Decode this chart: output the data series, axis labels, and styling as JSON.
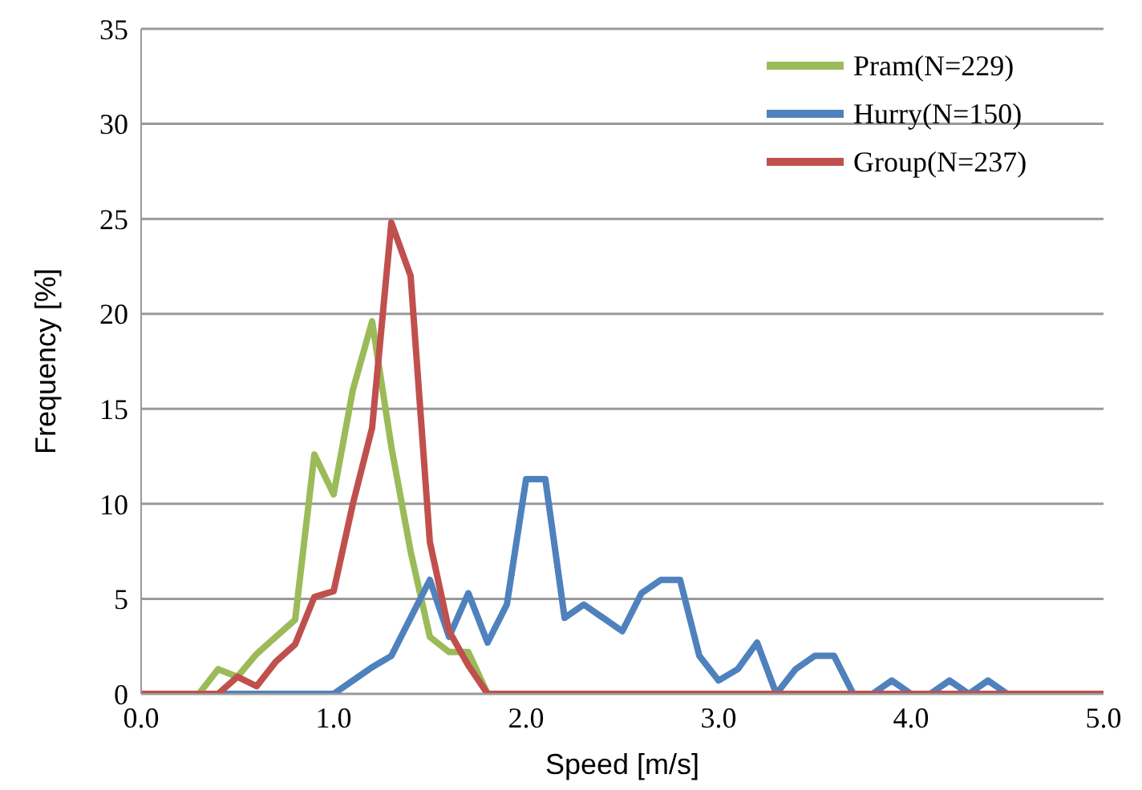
{
  "chart_data": {
    "type": "line",
    "xlabel": "Speed [m/s]",
    "ylabel": "Frequency [%]",
    "x": [
      0,
      0.1,
      0.2,
      0.3,
      0.4,
      0.5,
      0.6,
      0.7,
      0.8,
      0.9,
      1.0,
      1.1,
      1.2,
      1.3,
      1.4,
      1.5,
      1.6,
      1.7,
      1.8,
      1.9,
      2.0,
      2.1,
      2.2,
      2.3,
      2.4,
      2.5,
      2.6,
      2.7,
      2.8,
      2.9,
      3.0,
      3.1,
      3.2,
      3.3,
      3.4,
      3.5,
      3.6,
      3.7,
      3.8,
      3.9,
      4.0,
      4.1,
      4.2,
      4.3,
      4.4,
      4.5,
      4.6,
      4.7,
      4.8,
      4.9,
      5.0
    ],
    "series": [
      {
        "name": "Pram(N=229)",
        "color": "#9bbb59",
        "values": [
          0,
          0,
          0,
          0,
          1.3,
          0.9,
          2.1,
          3,
          3.9,
          12.6,
          10.5,
          16,
          19.6,
          13,
          7.5,
          3,
          2.2,
          2.2,
          0,
          0,
          0,
          0,
          0,
          0,
          0,
          0,
          0,
          0,
          0,
          0,
          0,
          0,
          0,
          0,
          0,
          0,
          0,
          0,
          0,
          0,
          0,
          0,
          0,
          0,
          0,
          0,
          0,
          0,
          0,
          0,
          0
        ]
      },
      {
        "name": "Hurry(N=150)",
        "color": "#4f81bd",
        "values": [
          null,
          null,
          null,
          0,
          0,
          0,
          0,
          0,
          0,
          0,
          0,
          0.7,
          1.4,
          2,
          4,
          6,
          3,
          5.3,
          2.7,
          4.7,
          11.3,
          11.3,
          4,
          4.7,
          4,
          3.3,
          5.3,
          6,
          6,
          2,
          0.7,
          1.3,
          2.7,
          0,
          1.3,
          2,
          2,
          0,
          0,
          0.7,
          0,
          0,
          0.7,
          0,
          0.7,
          0,
          0,
          null,
          null,
          null,
          null
        ]
      },
      {
        "name": "Group(N=237)",
        "color": "#c0504d",
        "values": [
          0,
          0,
          0,
          0,
          0,
          0.9,
          0.4,
          1.7,
          2.6,
          5.1,
          5.4,
          10,
          14,
          24.8,
          22,
          8,
          3.3,
          1.5,
          0,
          0,
          0,
          0,
          0,
          0,
          0,
          0,
          0,
          0,
          0,
          0,
          0,
          0,
          0,
          0,
          0,
          0,
          0,
          0,
          0,
          0,
          0,
          0,
          0,
          0,
          0,
          0,
          0,
          0,
          0,
          0,
          0
        ]
      }
    ],
    "xlim": [
      0,
      5
    ],
    "xticks": [
      {
        "value": 0,
        "label": "0.0"
      },
      {
        "value": 1,
        "label": "1.0"
      },
      {
        "value": 2,
        "label": "2.0"
      },
      {
        "value": 3,
        "label": "3.0"
      },
      {
        "value": 4,
        "label": "4.0"
      },
      {
        "value": 5,
        "label": "5.0"
      }
    ],
    "ylim": [
      0,
      35
    ],
    "yticks": [
      0,
      5,
      10,
      15,
      20,
      25,
      30,
      35
    ],
    "grid": "y",
    "legend": "top right",
    "marker": "none",
    "line_style": "solid"
  }
}
